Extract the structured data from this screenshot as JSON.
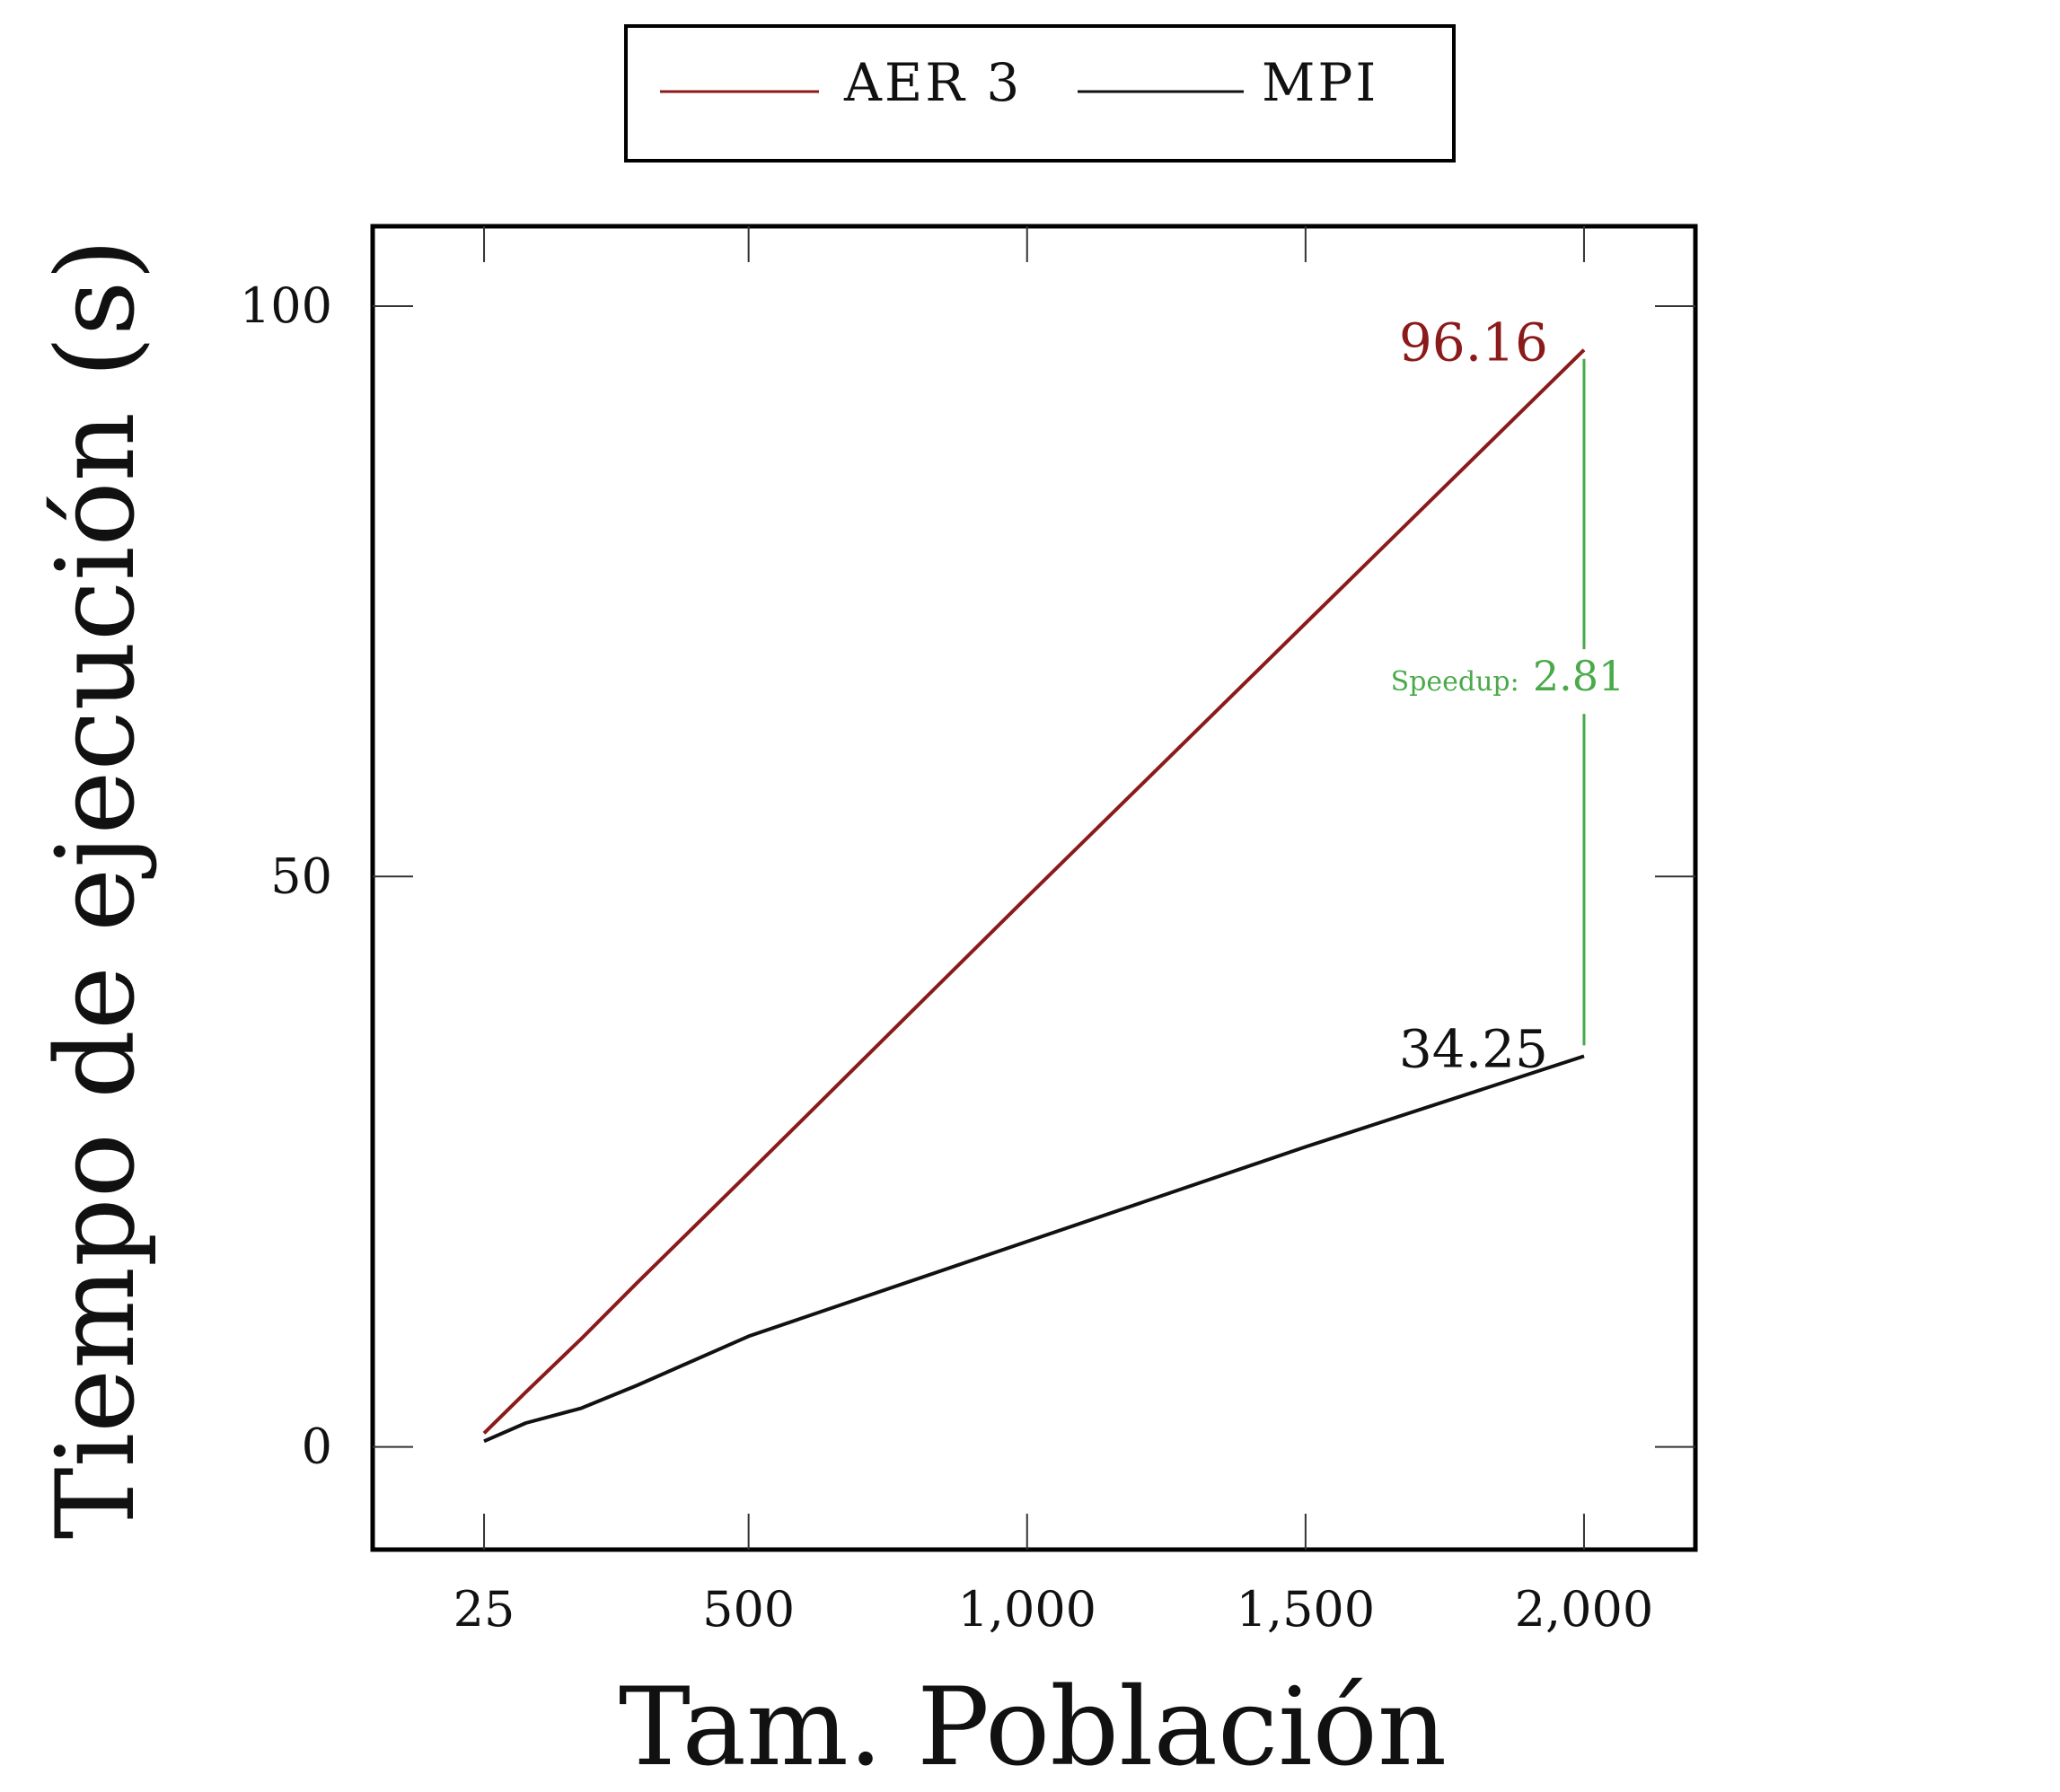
{
  "chart_data": {
    "type": "line",
    "xlabel": "Tam. Población",
    "ylabel": "Tiempo de ejecución (s)",
    "xlim": [
      -175,
      2200
    ],
    "ylim": [
      -9,
      107
    ],
    "xticks": [
      25,
      500,
      1000,
      1500,
      2000
    ],
    "xtick_labels": [
      "25",
      "500",
      "1,000",
      "1,500",
      "2,000"
    ],
    "yticks": [
      0,
      50,
      100
    ],
    "ytick_labels": [
      "0",
      "50",
      "100"
    ],
    "grid": false,
    "legend_position": "top",
    "series": [
      {
        "name": "AER 3",
        "color": "#8b1a1a",
        "x": [
          25,
          100,
          200,
          300,
          500,
          1000,
          1500,
          2000
        ],
        "y": [
          1.2,
          4.8,
          9.5,
          14.4,
          24.0,
          48.2,
          72.2,
          96.16
        ]
      },
      {
        "name": "MPI",
        "color": "#111111",
        "x": [
          25,
          100,
          200,
          300,
          500,
          1000,
          1500,
          2000
        ],
        "y": [
          0.5,
          2.1,
          3.4,
          5.4,
          9.7,
          18.0,
          26.3,
          34.25
        ]
      }
    ],
    "annotations": {
      "aer_end_label": "96.16",
      "mpi_end_label": "34.25",
      "speedup_prefix": "Speedup:",
      "speedup_value": "2.81",
      "speedup_color": "#4aaa4a"
    }
  }
}
